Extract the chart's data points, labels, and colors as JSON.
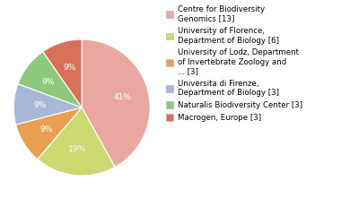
{
  "labels": [
    "Centre for Biodiversity\nGenomics [13]",
    "University of Florence,\nDepartment of Biology [6]",
    "University of Lodz, Department\nof Invertebrate Zoology and\n... [3]",
    "Universita di Firenze,\nDepartment of Biology [3]",
    "Naturalis Biodiversity Center [3]",
    "Macrogen, Europe [3]"
  ],
  "values": [
    13,
    6,
    3,
    3,
    3,
    3
  ],
  "colors": [
    "#e8a8a0",
    "#ccd870",
    "#e8a050",
    "#a8b8d8",
    "#8ec87a",
    "#d8705a"
  ],
  "autopct_labels": [
    "41%",
    "19%",
    "9%",
    "9%",
    "9%",
    "9%"
  ],
  "pct_color": "white",
  "pct_fontsize": 6.5,
  "legend_fontsize": 6.2,
  "startangle": 90,
  "counterclock": false
}
